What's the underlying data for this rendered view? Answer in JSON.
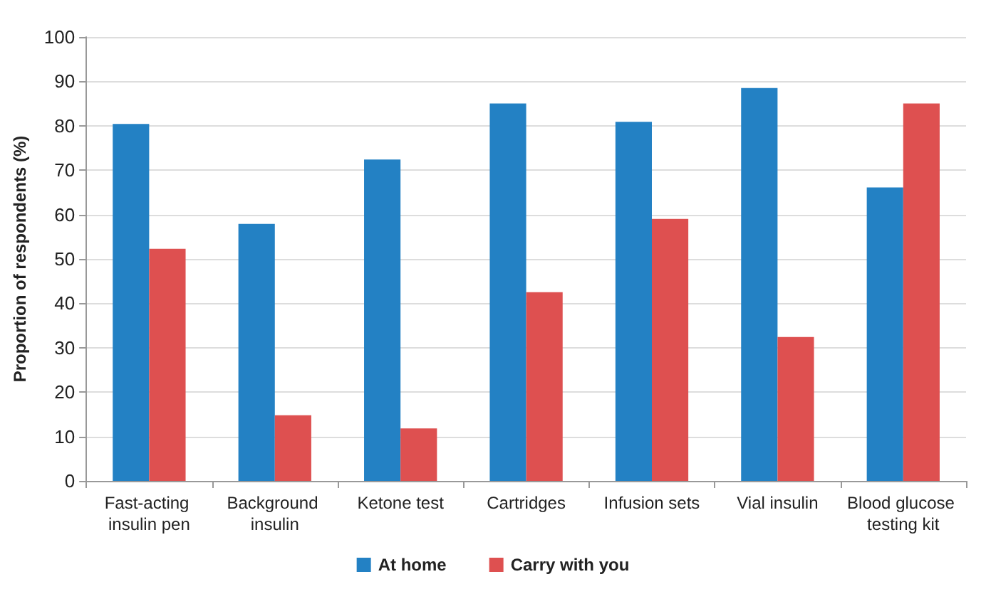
{
  "chart_data": {
    "type": "bar",
    "ylabel": "Proportion of respondents (%)",
    "categories": [
      "Fast-acting insulin pen",
      "Background insulin",
      "Ketone test",
      "Cartridges",
      "Infusion sets",
      "Vial insulin",
      "Blood glucose testing kit"
    ],
    "series": [
      {
        "name": "At home",
        "color": "#2381c4",
        "values": [
          80.4,
          57.9,
          72.4,
          85.0,
          80.9,
          88.5,
          66.1
        ]
      },
      {
        "name": "Carry with you",
        "color": "#de5050",
        "values": [
          52.3,
          14.8,
          11.8,
          42.5,
          59.0,
          32.4,
          85.0
        ]
      }
    ],
    "ylim": [
      0,
      100
    ],
    "yticks": [
      0,
      10,
      20,
      30,
      40,
      50,
      60,
      70,
      80,
      90,
      100
    ],
    "grid": "y",
    "legend": "bottom"
  }
}
